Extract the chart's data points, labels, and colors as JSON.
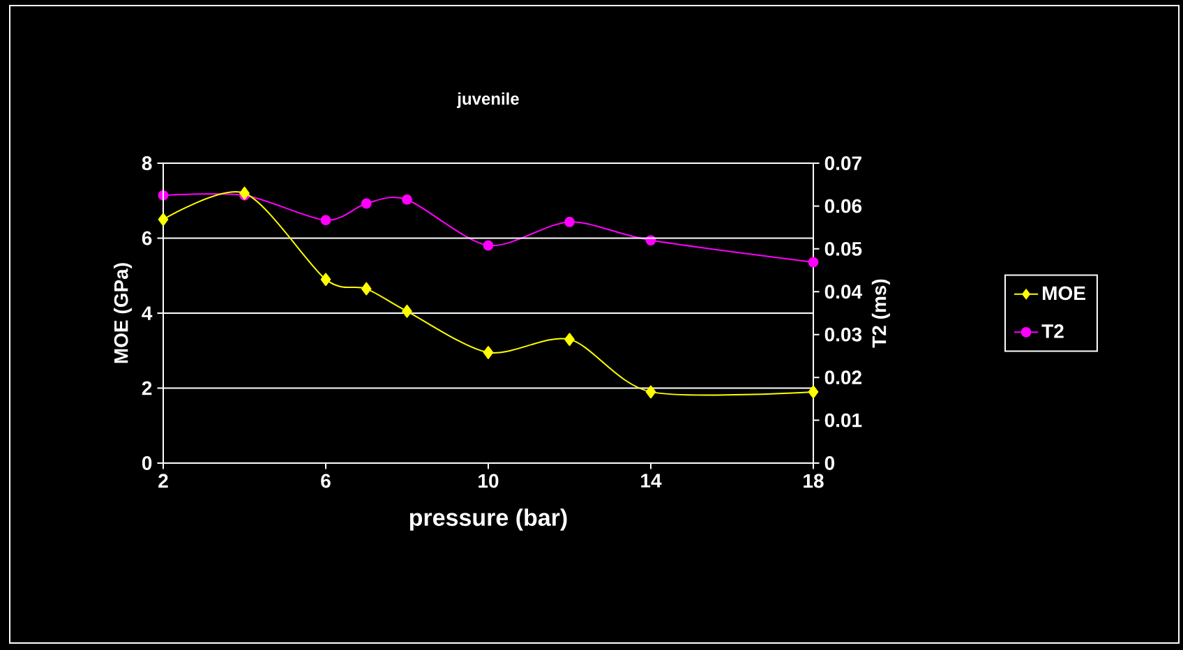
{
  "chart_data": {
    "type": "line",
    "title": "juvenile",
    "xlabel": "pressure (bar)",
    "ylabel": "MOE (GPa)",
    "y2label": "T2 (ms)",
    "x": [
      2,
      4,
      6,
      7,
      8,
      10,
      12,
      14,
      18
    ],
    "series": [
      {
        "name": "MOE",
        "color": "#ffff00",
        "marker": "diamond",
        "values": [
          6.5,
          7.2,
          4.9,
          4.65,
          4.05,
          2.95,
          3.3,
          1.9,
          1.9
        ]
      },
      {
        "name": "T2",
        "color": "#ff00ff",
        "marker": "circle",
        "axis": "y2",
        "values": [
          0.0625,
          0.0625,
          0.0567,
          0.0606,
          0.0615,
          0.0508,
          0.0563,
          0.052,
          0.0469
        ]
      }
    ],
    "xlim": [
      2,
      18
    ],
    "xticks": [
      2,
      6,
      10,
      14,
      18
    ],
    "ylim": [
      0,
      8
    ],
    "yticks": [
      0,
      2,
      4,
      6,
      8
    ],
    "y2lim": [
      0,
      0.07
    ],
    "y2ticks": [
      0,
      0.01,
      0.02,
      0.03,
      0.04,
      0.05,
      0.06,
      0.07
    ],
    "grid": "y",
    "legend": "right",
    "line_style": "solid"
  }
}
